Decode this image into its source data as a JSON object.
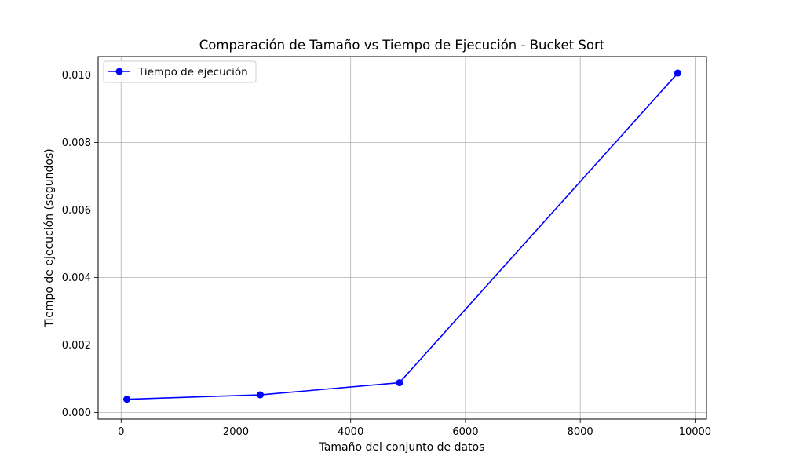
{
  "chart_data": {
    "type": "line",
    "title": "Comparación de Tamaño vs Tiempo de Ejecución - Bucket Sort",
    "xlabel": "Tamaño del conjunto de datos",
    "ylabel": "Tiempo de ejecución (segundos)",
    "xlim": [
      -400,
      10200
    ],
    "ylim": [
      -0.0002,
      0.01055
    ],
    "xticks": [
      0,
      2000,
      4000,
      6000,
      8000,
      10000
    ],
    "xtick_labels": [
      "0",
      "2000",
      "4000",
      "6000",
      "8000",
      "10000"
    ],
    "yticks": [
      0,
      0.002,
      0.004,
      0.006,
      0.008,
      0.01
    ],
    "ytick_labels": [
      "0.000",
      "0.002",
      "0.004",
      "0.006",
      "0.008",
      "0.010"
    ],
    "grid": true,
    "legend_position": "top-left",
    "series": [
      {
        "name": "Tiempo de ejecución",
        "color": "#0000ff",
        "marker": "circle",
        "x": [
          100,
          2425,
          4850,
          9700
        ],
        "y": [
          0.00039,
          0.00052,
          0.00088,
          0.01006
        ]
      }
    ]
  }
}
